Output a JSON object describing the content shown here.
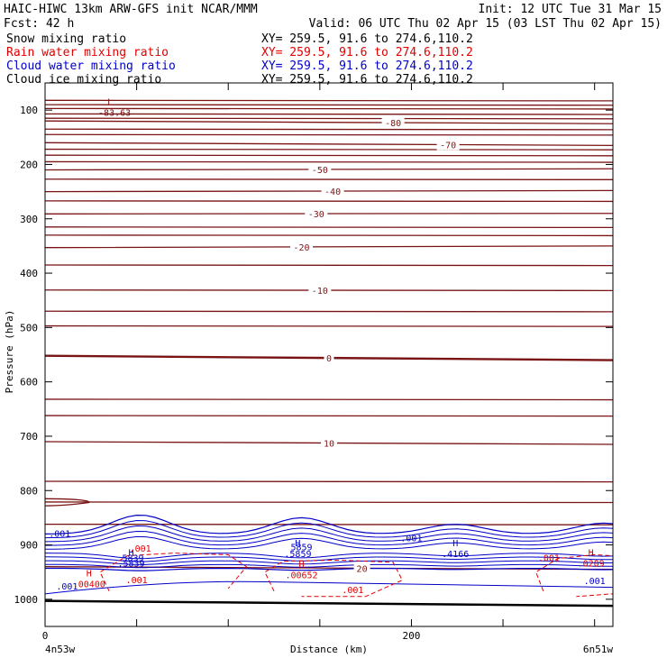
{
  "header": {
    "model_line": "HAIC-HIWC 13km ARW-GFS init   NCAR/MMM",
    "init": "Init: 12 UTC Tue 31 Mar 15",
    "fcst": "Fcst:   42 h",
    "valid": "Valid: 06 UTC Thu 02 Apr 15 (03 LST Thu 02 Apr 15)",
    "fields": [
      {
        "name": "Snow mixing ratio",
        "xy": "XY= 259.5, 91.6 to 274.6,110.2",
        "color": "#000000"
      },
      {
        "name": "Rain water mixing ratio",
        "xy": "XY= 259.5, 91.6 to 274.6,110.2",
        "color": "#e00000"
      },
      {
        "name": "Cloud water mixing ratio",
        "xy": "XY= 259.5, 91.6 to 274.6,110.2",
        "color": "#0000c8"
      },
      {
        "name": "Cloud ice mixing ratio",
        "xy": "XY= 259.5, 91.6 to 274.6,110.2",
        "color": "#000000"
      }
    ]
  },
  "chart_data": {
    "type": "contour",
    "xlabel": "Distance (km)",
    "ylabel": "Pressure (hPa)",
    "xlim": [
      0,
      310
    ],
    "ylim": [
      1050,
      50
    ],
    "x_ticks": [
      0,
      50,
      100,
      150,
      200,
      250,
      300
    ],
    "x_tick_labels": [
      "0",
      "200"
    ],
    "y_ticks": [
      100,
      200,
      300,
      400,
      500,
      600,
      700,
      800,
      900,
      1000
    ],
    "cross_section_start": "4n53w",
    "cross_section_end": "6n51w",
    "colors": {
      "temperature": "#7a1414",
      "rain": "#e00000",
      "cloud_water": "#0000c8",
      "ground": "#000000"
    },
    "temperature_contours": [
      {
        "value": -80,
        "pressure_left": 120,
        "pressure_right": 125,
        "label": "-80"
      },
      {
        "value": -70,
        "pressure_left": 160,
        "pressure_right": 165,
        "label": "-70"
      },
      {
        "value": -50,
        "pressure_left": 210,
        "pressure_right": 208,
        "label": "-50"
      },
      {
        "value": -40,
        "pressure_left": 250,
        "pressure_right": 248,
        "label": "-40"
      },
      {
        "value": -30,
        "pressure_left": 291,
        "pressure_right": 290,
        "label": "-30"
      },
      {
        "value": -20,
        "pressure_left": 353,
        "pressure_right": 350,
        "label": "-20"
      },
      {
        "value": -10,
        "pressure_left": 431,
        "pressure_right": 432,
        "label": "-10"
      },
      {
        "value": 0,
        "pressure_left": 552,
        "pressure_right": 560,
        "label": "0"
      },
      {
        "value": 10,
        "pressure_left": 710,
        "pressure_right": 715,
        "label": "10"
      },
      {
        "value": 20,
        "pressure_left": 940,
        "pressure_right": 945,
        "label": "20"
      }
    ],
    "extra_temperature_levels": [
      82,
      90,
      97,
      107,
      115,
      135,
      145,
      172,
      183,
      195,
      227,
      267,
      315,
      330,
      385,
      470,
      497,
      632,
      662,
      783,
      821,
      862
    ],
    "temperature_min": {
      "marker": "L",
      "label": "-83.63",
      "x": 34,
      "pressure": 82
    },
    "cloud_water_labels": [
      {
        "text": ".001",
        "x": 8,
        "pressure": 885
      },
      {
        "text": ".001",
        "x": 12,
        "pressure": 982
      },
      {
        "text": ".001",
        "x": 200,
        "pressure": 893
      },
      {
        "text": ".001",
        "x": 300,
        "pressure": 972
      },
      {
        "text": "5839",
        "x": 48,
        "pressure": 930
      },
      {
        "text": "5859",
        "x": 140,
        "pressure": 910
      }
    ],
    "cloud_water_maxima": [
      {
        "marker": "H",
        "label": ".5839",
        "x": 47,
        "pressure": 920
      },
      {
        "marker": "H",
        "label": ".5859",
        "x": 138,
        "pressure": 902
      },
      {
        "marker": "H",
        "label": ".4166",
        "x": 224,
        "pressure": 902
      }
    ],
    "rain_labels": [
      {
        "text": ".001",
        "x": 52,
        "pressure": 912
      },
      {
        "text": ".001",
        "x": 50,
        "pressure": 970
      },
      {
        "text": ".001",
        "x": 168,
        "pressure": 989
      },
      {
        "text": ".001",
        "x": 275,
        "pressure": 930
      }
    ],
    "rain_maxima": [
      {
        "marker": "H",
        "label": ".00400",
        "x": 24,
        "pressure": 958
      },
      {
        "marker": "H",
        "label": ".00652",
        "x": 140,
        "pressure": 941
      },
      {
        "marker": "H",
        "label": ".0209",
        "x": 298,
        "pressure": 920
      }
    ]
  }
}
